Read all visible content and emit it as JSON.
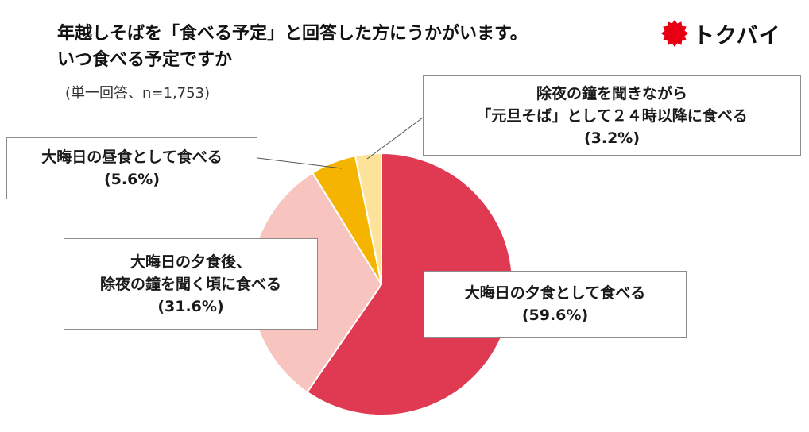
{
  "title": {
    "line1": "年越しそばを「食べる予定」と回答した方にうかがいます。",
    "line2": "いつ食べる予定ですか"
  },
  "note": "(単一回答、n=1,753)",
  "logo": {
    "text": "トクバイ",
    "mark_color": "#e60012"
  },
  "chart_data": {
    "type": "pie",
    "start": "12 o'clock",
    "direction": "clockwise",
    "slices": [
      {
        "name": "大晦日の夕食として食べる",
        "value": 59.6,
        "label": "(59.6%)",
        "color": "#e03a52"
      },
      {
        "name": "大晦日の夕食後、除夜の鐘を聞く頃に食べる",
        "value": 31.6,
        "label": "(31.6%)",
        "color": "#f8c4c0"
      },
      {
        "name": "大晦日の昼食として食べる",
        "value": 5.6,
        "label": "(5.6%)",
        "color": "#f5b400"
      },
      {
        "name": "除夜の鐘を聞きながら「元旦そば」として２４時以降に食べる",
        "value": 3.2,
        "label": "(3.2%)",
        "color": "#fde39a"
      }
    ]
  },
  "callouts": {
    "c0": {
      "line1": "大晦日の夕食として食べる",
      "line2": "(59.6%)"
    },
    "c1": {
      "line1": "大晦日の夕食後、",
      "line2": "除夜の鐘を聞く頃に食べる",
      "line3": "(31.6%)"
    },
    "c2": {
      "line1": "大晦日の昼食として食べる",
      "line2": "(5.6%)"
    },
    "c3": {
      "line1": "除夜の鐘を聞きながら",
      "line2": "「元旦そば」として２４時以降に食べる",
      "line3": "(3.2%)"
    }
  }
}
